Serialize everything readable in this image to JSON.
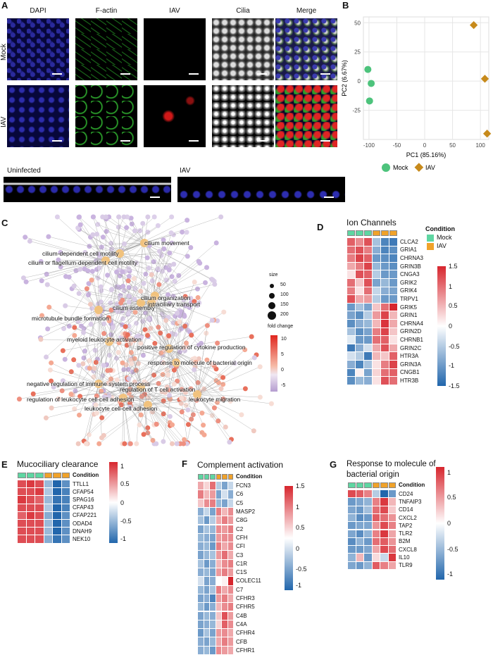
{
  "panels": {
    "A": "A",
    "B": "B",
    "C": "C",
    "D": "D",
    "E": "E",
    "F": "F",
    "G": "G"
  },
  "panelA": {
    "columns": [
      "DAPI",
      "F-actin",
      "IAV",
      "Cilia",
      "Merge"
    ],
    "rows": [
      "Mock",
      "IAV"
    ],
    "cross_sections": [
      "Uninfected",
      "IAV"
    ]
  },
  "panelB": {
    "chart_data": {
      "type": "scatter",
      "xlabel": "PC1 (85.16%)",
      "ylabel": "PC2 (6.67%)",
      "xlim": [
        -110,
        115
      ],
      "ylim": [
        -50,
        55
      ],
      "xticks": [
        -100,
        -50,
        0,
        50,
        100
      ],
      "yticks": [
        -25,
        0,
        25,
        50
      ],
      "series": [
        {
          "name": "Mock",
          "color": "#4dc37c",
          "marker": "circle",
          "x": [
            -102,
            -96,
            -99
          ],
          "y": [
            10,
            -2,
            -17
          ]
        },
        {
          "name": "IAV",
          "color": "#c78a1b",
          "marker": "diamond",
          "x": [
            88,
            108,
            112
          ],
          "y": [
            48,
            2,
            -45
          ]
        }
      ],
      "grid": true,
      "legend": "bottom"
    }
  },
  "panelC": {
    "legend_size_title": "size",
    "size_values": [
      "50",
      "100",
      "150",
      "200"
    ],
    "legend_fc_title": "fold change",
    "fc_ticks": [
      "10",
      "5",
      "0",
      "-5"
    ],
    "terms": [
      "cilium movement",
      "cilium-dependent cell motility",
      "cilium or flagellum-dependent cell motility",
      "cilium organization",
      "cilium assembly",
      "intraciliary transport",
      "microtubule bundle formation",
      "myeloid leukocyte activation",
      "positive regulation of cytokine production",
      "response to molecule of bacterial origin",
      "negative regulation of immune system process",
      "regulation of T cell activation",
      "regulation of leukocyte cell-cell adhesion",
      "leukocyte migration",
      "leukocyte cell-cell adhesion"
    ]
  },
  "panelD": {
    "title": "Ion Channels",
    "condition_label": "Condition",
    "conditions": [
      "Mock",
      "IAV"
    ],
    "scale_ticks": [
      "1.5",
      "1",
      "0.5",
      "0",
      "-0.5",
      "-1",
      "-1.5"
    ],
    "genes": [
      "CLCA2",
      "GRIA1",
      "CHRNA3",
      "GRIN3B",
      "CNGA3",
      "GRIK2",
      "GRIK4",
      "TRPV1",
      "GRIK5",
      "GRIN1",
      "CHRNA4",
      "GRIN2D",
      "CHRNB1",
      "GRIN2C",
      "HTR3A",
      "GRIN3A",
      "CNGB1",
      "HTR3B"
    ],
    "values": [
      [
        1.1,
        0.8,
        1.2,
        -0.6,
        -1.2,
        -1.3
      ],
      [
        1.0,
        1.2,
        0.9,
        -0.8,
        -1.2,
        -1.1
      ],
      [
        0.9,
        1.3,
        1.1,
        -1.0,
        -1.1,
        -1.2
      ],
      [
        0.6,
        0.9,
        1.3,
        -0.7,
        -1.0,
        -1.1
      ],
      [
        0.2,
        1.2,
        1.1,
        -0.5,
        -1.0,
        -1.0
      ],
      [
        1.0,
        0.4,
        1.2,
        -0.9,
        -0.7,
        -1.0
      ],
      [
        0.9,
        0.2,
        1.0,
        -0.4,
        -0.8,
        -0.9
      ],
      [
        1.2,
        0.6,
        0.7,
        -0.5,
        -1.0,
        -1.0
      ],
      [
        -1.0,
        -0.6,
        -0.9,
        0.4,
        1.0,
        1.5
      ],
      [
        -0.9,
        -1.1,
        -0.5,
        0.7,
        1.3,
        0.5
      ],
      [
        -1.1,
        -0.8,
        -0.7,
        0.5,
        1.4,
        0.6
      ],
      [
        -0.6,
        -1.1,
        -0.9,
        0.9,
        1.3,
        0.4
      ],
      [
        -0.2,
        -1.0,
        -1.0,
        1.0,
        1.1,
        0.2
      ],
      [
        -1.3,
        -0.8,
        -0.3,
        0.6,
        1.2,
        0.6
      ],
      [
        -0.3,
        -0.5,
        -1.3,
        0.5,
        0.4,
        1.1
      ],
      [
        -0.8,
        -1.2,
        -0.6,
        0.2,
        0.9,
        1.3
      ],
      [
        -1.2,
        0.1,
        -0.9,
        0.3,
        1.0,
        1.1
      ],
      [
        -1.1,
        -0.7,
        -0.8,
        0.2,
        1.2,
        1.0
      ]
    ]
  },
  "panelE": {
    "title": "Mucociliary clearance",
    "condition_label": "Condition",
    "scale_ticks": [
      "1",
      "0.5",
      "0",
      "-0.5",
      "-1"
    ],
    "genes": [
      "TTLL1",
      "CFAP54",
      "SPAG16",
      "CFAP43",
      "CFAP221",
      "ODAD4",
      "DNAH9",
      "NEK10"
    ],
    "values": [
      [
        0.9,
        1.0,
        0.9,
        -0.5,
        -1.1,
        -0.8
      ],
      [
        0.9,
        0.9,
        1.0,
        -0.4,
        -1.1,
        -0.9
      ],
      [
        1.0,
        0.9,
        0.8,
        -0.5,
        -1.0,
        -0.9
      ],
      [
        0.9,
        0.9,
        0.9,
        -0.4,
        -1.1,
        -0.9
      ],
      [
        0.8,
        1.0,
        0.9,
        -0.6,
        -1.1,
        -0.8
      ],
      [
        0.9,
        0.9,
        0.9,
        -0.5,
        -1.1,
        -0.8
      ],
      [
        0.9,
        0.9,
        0.9,
        -0.5,
        -1.1,
        -0.8
      ],
      [
        0.9,
        0.9,
        0.9,
        -0.6,
        -1.0,
        -0.8
      ]
    ]
  },
  "panelF": {
    "title": "Complement activation",
    "condition_label": "Condition",
    "scale_ticks": [
      "1.5",
      "1",
      "0.5",
      "0",
      "-0.5",
      "-1"
    ],
    "genes": [
      "FCN3",
      "C6",
      "C5",
      "MASP2",
      "C8G",
      "C2",
      "CFH",
      "CFI",
      "C3",
      "C1R",
      "C1S",
      "COLEC11",
      "C7",
      "CFHR3",
      "CFHR5",
      "C4B",
      "C4A",
      "CFHR4",
      "CFB",
      "CFHR1"
    ],
    "values": [
      [
        0.6,
        0.3,
        1.0,
        -0.5,
        -0.9,
        -0.4
      ],
      [
        0.9,
        0.5,
        0.7,
        -0.9,
        -0.3,
        -0.8
      ],
      [
        0.4,
        0.8,
        0.9,
        -0.7,
        -0.9,
        -0.4
      ],
      [
        -0.8,
        -0.4,
        -0.9,
        0.9,
        0.5,
        0.8
      ],
      [
        -0.6,
        -1.0,
        -0.5,
        0.6,
        0.9,
        0.7
      ],
      [
        -0.9,
        -0.6,
        -0.7,
        0.8,
        0.7,
        0.9
      ],
      [
        -0.7,
        -0.8,
        -0.9,
        0.7,
        0.8,
        0.8
      ],
      [
        -0.8,
        -0.7,
        -1.0,
        0.9,
        0.6,
        0.8
      ],
      [
        -0.9,
        -0.7,
        -0.6,
        0.7,
        1.0,
        0.6
      ],
      [
        -0.6,
        -1.0,
        -0.8,
        0.5,
        0.8,
        0.9
      ],
      [
        -0.8,
        -0.7,
        -0.9,
        0.7,
        0.9,
        0.7
      ],
      [
        -0.3,
        -0.9,
        -0.8,
        0.0,
        0.1,
        1.5
      ],
      [
        -0.7,
        -0.9,
        -0.6,
        0.9,
        0.6,
        0.8
      ],
      [
        -0.9,
        -0.8,
        -1.2,
        0.7,
        0.9,
        0.6
      ],
      [
        -0.7,
        -1.0,
        -0.8,
        0.5,
        0.8,
        0.9
      ],
      [
        -0.9,
        -0.7,
        -0.8,
        0.4,
        1.2,
        0.7
      ],
      [
        -0.9,
        -0.8,
        -0.7,
        0.3,
        1.1,
        0.8
      ],
      [
        -1.0,
        -0.6,
        -0.9,
        0.7,
        0.8,
        0.6
      ],
      [
        -0.8,
        -0.9,
        -0.7,
        0.6,
        0.9,
        0.7
      ],
      [
        -0.8,
        -0.7,
        -1.0,
        0.8,
        0.7,
        0.6
      ]
    ]
  },
  "panelG": {
    "title_line1": "Response to molecule of",
    "title_line2": "bacterial origin",
    "condition_label": "Condition",
    "scale_ticks": [
      "1",
      "0.5",
      "0",
      "-0.5",
      "-1"
    ],
    "genes": [
      "CD24",
      "TNFAIP3",
      "CD14",
      "CXCL2",
      "TAP2",
      "TLR2",
      "B2M",
      "CXCL8",
      "IL10",
      "TLR9"
    ],
    "values": [
      [
        1.0,
        0.9,
        0.7,
        -0.4,
        -1.2,
        -0.8
      ],
      [
        -0.8,
        -0.7,
        -0.6,
        0.7,
        1.1,
        0.4
      ],
      [
        -0.7,
        -0.8,
        -0.5,
        0.8,
        1.0,
        0.3
      ],
      [
        -0.6,
        -0.9,
        -0.8,
        0.9,
        0.8,
        0.6
      ],
      [
        -0.8,
        -0.7,
        -0.7,
        0.6,
        1.0,
        0.7
      ],
      [
        -0.7,
        -0.9,
        -0.6,
        0.7,
        1.1,
        0.5
      ],
      [
        -0.9,
        -0.6,
        -0.8,
        0.8,
        0.9,
        0.6
      ],
      [
        -0.8,
        -0.8,
        -0.7,
        0.5,
        1.0,
        0.8
      ],
      [
        -0.6,
        0.4,
        -0.8,
        0.2,
        -0.3,
        1.1
      ],
      [
        -0.7,
        -0.8,
        -0.6,
        0.9,
        0.7,
        0.5
      ]
    ]
  },
  "colors": {
    "mock": "#5fd6a2",
    "iav": "#f0a22a",
    "heat_low": "#2166ac",
    "heat_mid": "#ffffff",
    "heat_high": "#d7262e"
  }
}
